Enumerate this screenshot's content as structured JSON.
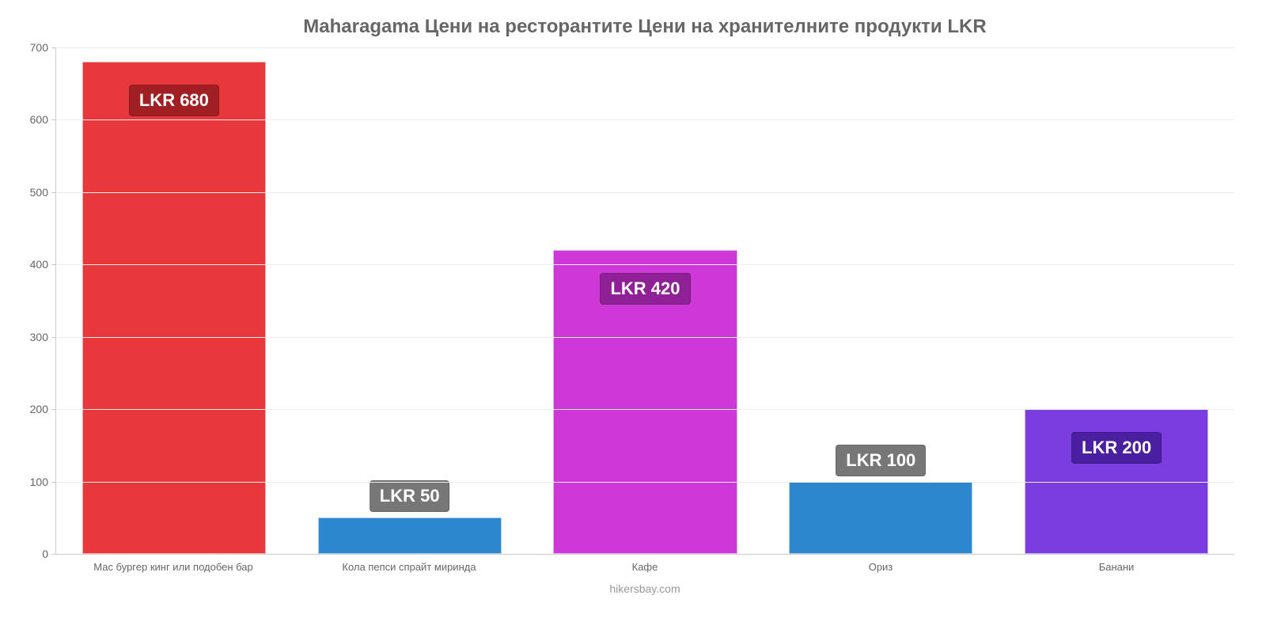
{
  "chart": {
    "type": "bar",
    "title": "Maharagama Цени на ресторантите Цени на хранителните продукти LKR",
    "title_color": "#666666",
    "title_fontsize": 24,
    "background_color": "#ffffff",
    "grid_color": "#eeeeee",
    "axis_color": "#cccccc",
    "axis_label_color": "#666666",
    "axis_label_fontsize": 14,
    "x_label_fontsize": 13,
    "ylim": [
      0,
      700
    ],
    "ytick_step": 100,
    "yticks": [
      0,
      100,
      200,
      300,
      400,
      500,
      600,
      700
    ],
    "bar_width_pct": 78,
    "data_label_fontsize": 22,
    "data_label_text_color": "#ffffff",
    "categories": [
      "Мас бургер кинг или подобен бар",
      "Кола пепси спрайт миринда",
      "Кафе",
      "Ориз",
      "Банани"
    ],
    "values": [
      680,
      50,
      420,
      100,
      200
    ],
    "display_labels": [
      "LKR 680",
      "LKR 50",
      "LKR 420",
      "LKR 100",
      "LKR 200"
    ],
    "bar_colors": [
      "#e8383b",
      "#2d87cf",
      "#cf38d8",
      "#2d87cf",
      "#7a3ee0"
    ],
    "label_bg_colors": [
      "#a11f22",
      "#777777",
      "#8f2096",
      "#777777",
      "#4a1fa0"
    ],
    "label_y_offset_mode": [
      "inside-top",
      "above",
      "inside-top",
      "above",
      "inside-top"
    ],
    "footer": "hikersbay.com",
    "footer_color": "#999999"
  }
}
